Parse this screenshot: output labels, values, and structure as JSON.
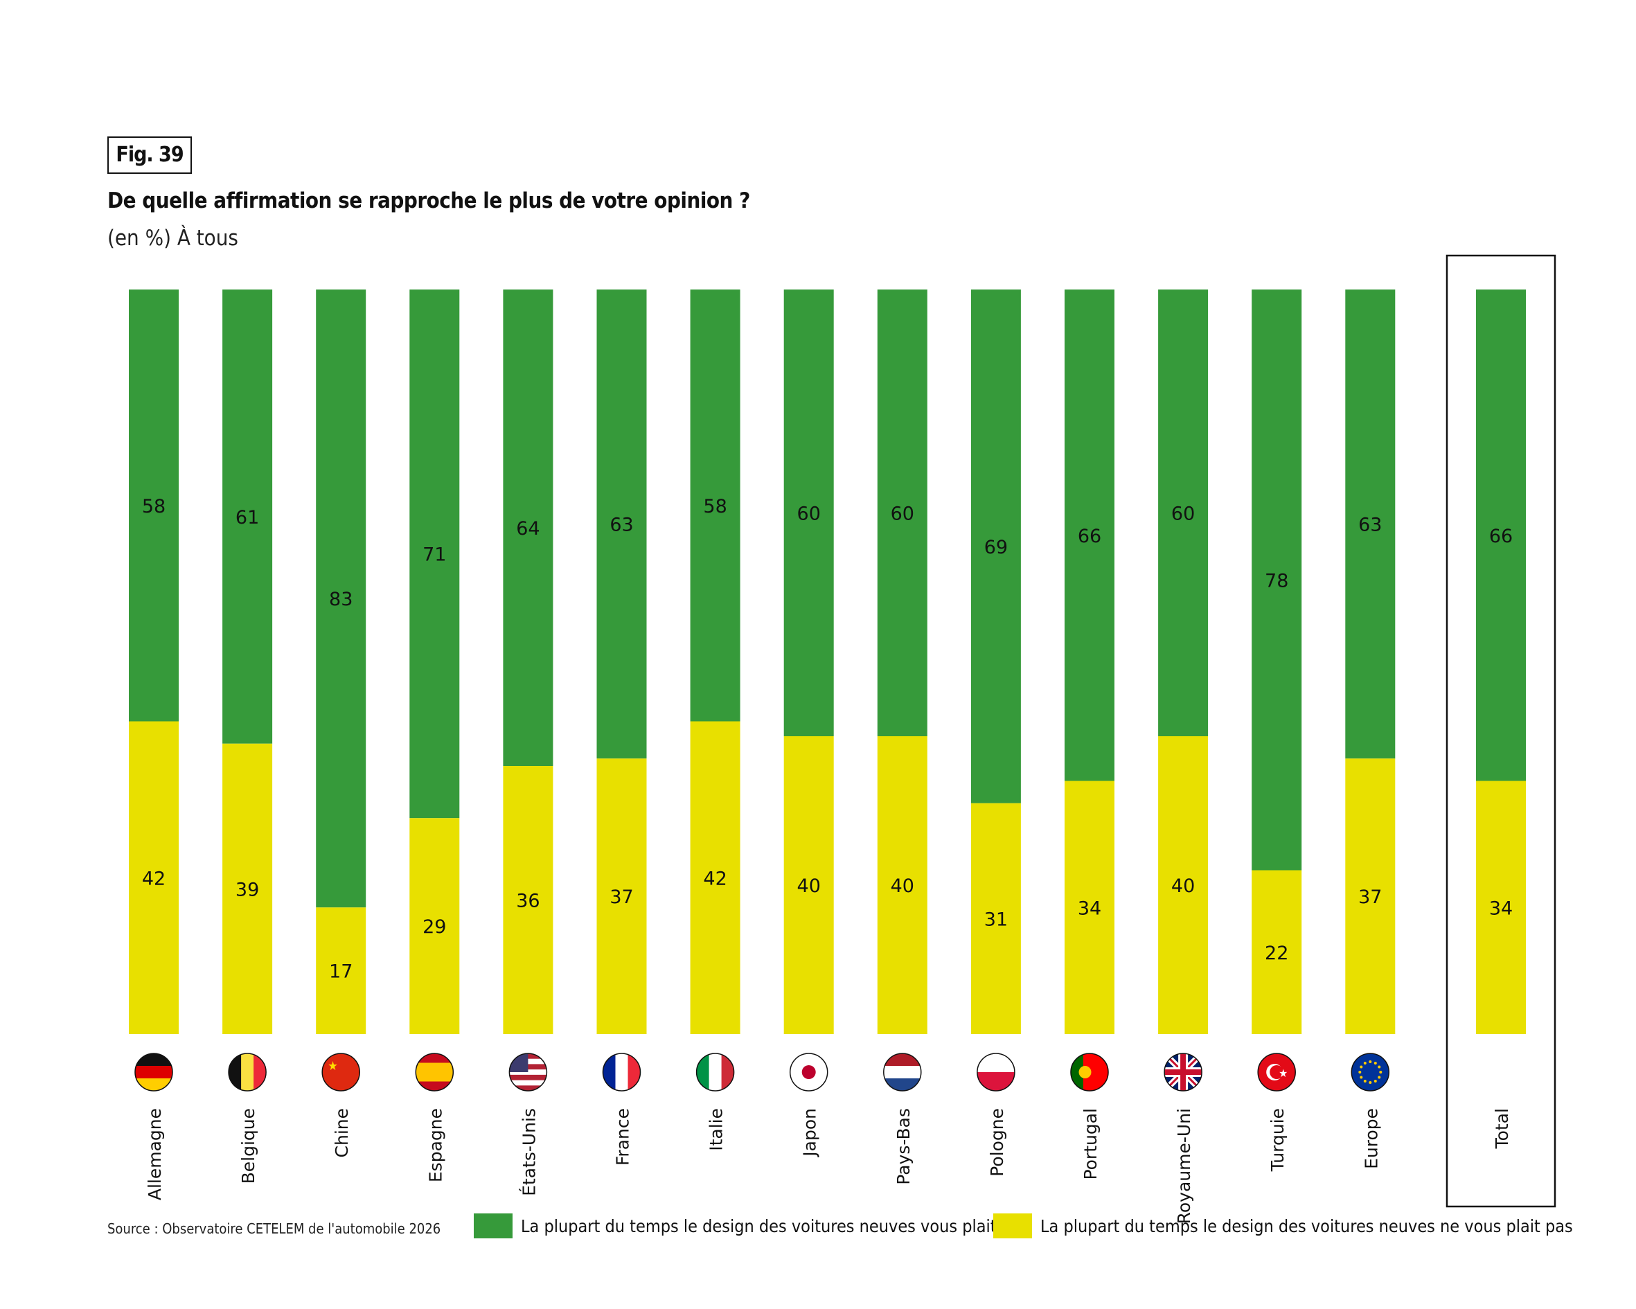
{
  "figure_label": "Fig. 39",
  "colors": {
    "green": "#369a3a",
    "yellow": "#e8e000"
  },
  "source": "Source : Observatoire CETELEM de l'automobile 2026",
  "chart_data": {
    "type": "bar",
    "stacked": true,
    "title": "De quelle affirmation se rapproche le plus de votre opinion ?",
    "subtitle": "(en %) À tous",
    "categories": [
      "Allemagne",
      "Belgique",
      "Chine",
      "Espagne",
      "États-Unis",
      "France",
      "Italie",
      "Japon",
      "Pays-Bas",
      "Pologne",
      "Portugal",
      "Royaume-Uni",
      "Turquie",
      "Europe",
      "Total"
    ],
    "flags": [
      "germany-flag",
      "belgium-flag",
      "china-flag",
      "spain-flag",
      "usa-flag",
      "france-flag",
      "italy-flag",
      "japan-flag",
      "netherlands-flag",
      "poland-flag",
      "portugal-flag",
      "uk-flag",
      "turkey-flag",
      "eu-flag",
      ""
    ],
    "highlighted_category": "Total",
    "ylim": [
      0,
      100
    ],
    "grid": false,
    "legend_position": "bottom",
    "series": [
      {
        "name": "La plupart du temps le design des voitures neuves vous plait",
        "color": "#369a3a",
        "values": [
          58,
          61,
          83,
          71,
          64,
          63,
          58,
          60,
          60,
          69,
          66,
          60,
          78,
          63,
          66
        ]
      },
      {
        "name": "La plupart du temps le design des voitures neuves ne vous plait pas",
        "color": "#e8e000",
        "values": [
          42,
          39,
          17,
          29,
          36,
          37,
          42,
          40,
          40,
          31,
          34,
          40,
          22,
          37,
          34
        ]
      }
    ]
  }
}
